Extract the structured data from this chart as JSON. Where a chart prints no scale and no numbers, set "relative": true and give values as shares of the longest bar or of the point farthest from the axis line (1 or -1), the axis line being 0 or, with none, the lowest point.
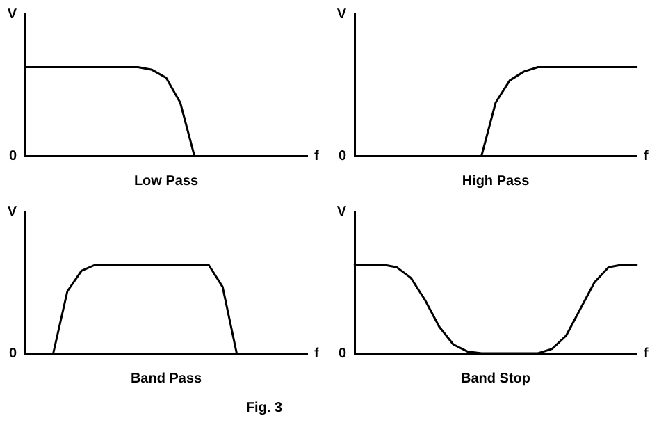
{
  "chart_data": [
    {
      "type": "line",
      "title": "Low Pass",
      "xlabel": "f",
      "ylabel": "V",
      "relative": true,
      "grid": false,
      "legend": false,
      "marker": "none",
      "line_style": "solid",
      "tick_labels": false,
      "annotations": [
        "0"
      ],
      "categories": [
        null,
        null,
        null,
        null,
        null,
        null,
        null,
        null,
        null,
        null,
        null,
        null,
        null,
        null,
        null,
        null,
        null,
        null,
        null,
        null,
        null
      ],
      "series": [
        {
          "color": "#000000",
          "values": [
            1,
            1,
            1,
            1,
            1,
            1,
            1,
            1,
            1,
            0.97,
            0.88,
            0.6,
            0,
            null,
            null,
            null,
            null,
            null,
            null,
            null,
            null
          ]
        }
      ]
    },
    {
      "type": "line",
      "title": "High Pass",
      "xlabel": "f",
      "ylabel": "V",
      "relative": true,
      "grid": false,
      "legend": false,
      "marker": "none",
      "line_style": "solid",
      "tick_labels": false,
      "annotations": [
        "0"
      ],
      "categories": [
        null,
        null,
        null,
        null,
        null,
        null,
        null,
        null,
        null,
        null,
        null,
        null,
        null,
        null,
        null,
        null,
        null,
        null,
        null,
        null,
        null
      ],
      "series": [
        {
          "color": "#000000",
          "values": [
            null,
            null,
            null,
            null,
            null,
            null,
            null,
            null,
            null,
            0,
            0.6,
            0.85,
            0.95,
            1,
            1,
            1,
            1,
            1,
            1,
            1,
            1
          ]
        }
      ]
    },
    {
      "type": "line",
      "title": "Band Pass",
      "xlabel": "f",
      "ylabel": "V",
      "relative": true,
      "grid": false,
      "legend": false,
      "marker": "none",
      "line_style": "solid",
      "tick_labels": false,
      "annotations": [
        "0"
      ],
      "categories": [
        null,
        null,
        null,
        null,
        null,
        null,
        null,
        null,
        null,
        null,
        null,
        null,
        null,
        null,
        null,
        null,
        null,
        null,
        null,
        null,
        null
      ],
      "series": [
        {
          "color": "#000000",
          "values": [
            null,
            null,
            0,
            0.7,
            0.93,
            1,
            1,
            1,
            1,
            1,
            1,
            1,
            1,
            1,
            0.75,
            0,
            null,
            null,
            null,
            null,
            null
          ]
        }
      ]
    },
    {
      "type": "line",
      "title": "Band Stop",
      "xlabel": "f",
      "ylabel": "V",
      "relative": true,
      "grid": false,
      "legend": false,
      "marker": "none",
      "line_style": "solid",
      "tick_labels": false,
      "annotations": [
        "0"
      ],
      "categories": [
        null,
        null,
        null,
        null,
        null,
        null,
        null,
        null,
        null,
        null,
        null,
        null,
        null,
        null,
        null,
        null,
        null,
        null,
        null,
        null,
        null
      ],
      "series": [
        {
          "color": "#000000",
          "values": [
            1,
            1,
            1,
            0.97,
            0.85,
            0.6,
            0.3,
            0.1,
            0.02,
            0,
            0,
            0,
            0,
            0,
            0.05,
            0.2,
            0.5,
            0.8,
            0.97,
            1,
            1
          ]
        }
      ]
    },
    {
      "type": "other",
      "annotations": [
        "Fig. 3"
      ]
    }
  ]
}
